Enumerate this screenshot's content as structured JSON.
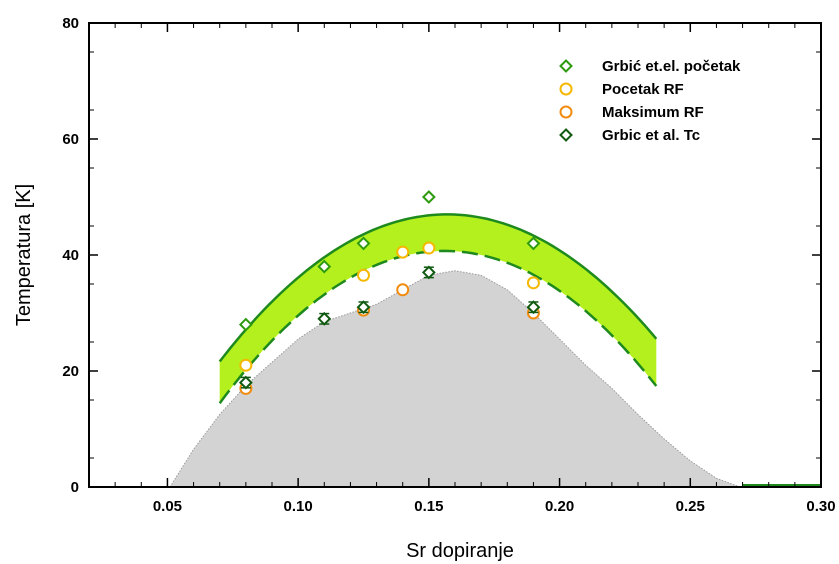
{
  "chart_data": {
    "type": "scatter",
    "xlabel": "Sr dopiranje",
    "ylabel": "Temperatura [K]",
    "xlim": [
      0.02,
      0.3
    ],
    "ylim": [
      0,
      80
    ],
    "xticks": [
      0.05,
      0.1,
      0.15,
      0.2,
      0.25,
      0.3
    ],
    "xtick_labels": [
      "0.05",
      "0.10",
      "0.15",
      "0.20",
      "0.25",
      "0.30"
    ],
    "yticks": [
      0,
      20,
      40,
      60,
      80
    ],
    "ytick_labels": [
      "0",
      "20",
      "40",
      "60",
      "80"
    ],
    "grid": false,
    "legend_position": "top-right",
    "series": [
      {
        "name": "Grbić et.el. početak",
        "marker": "diamond-open",
        "color": "#2e9b0f",
        "x": [
          0.08,
          0.11,
          0.125,
          0.15,
          0.19
        ],
        "y": [
          28,
          38,
          42,
          50,
          42
        ]
      },
      {
        "name": "Pocetak RF",
        "marker": "circle-open",
        "color": "#f5b800",
        "x": [
          0.08,
          0.125,
          0.14,
          0.15,
          0.19
        ],
        "y": [
          21,
          36.5,
          40.5,
          41.2,
          35.2
        ]
      },
      {
        "name": "Maksimum RF",
        "marker": "circle-open",
        "color": "#f28c0f",
        "x": [
          0.08,
          0.125,
          0.14,
          0.19
        ],
        "y": [
          17,
          30.5,
          34,
          30
        ]
      },
      {
        "name": "Grbic et al. Tc",
        "marker": "diamond-open",
        "color": "#0f5a10",
        "x": [
          0.08,
          0.11,
          0.125,
          0.15,
          0.19
        ],
        "y": [
          18,
          29,
          31,
          37,
          31
        ],
        "yerr": [
          0.9,
          0.9,
          0.9,
          0.9,
          0.9
        ]
      }
    ],
    "upper_curve": {
      "x0": 0.07,
      "x1": 0.237,
      "vertex_x": 0.157,
      "vertex_y": 47,
      "curvature": 3350,
      "color": "#1e8a1e"
    },
    "lower_curve": {
      "x0": 0.07,
      "x1": 0.237,
      "vertex_x": 0.156,
      "vertex_y": 40.7,
      "curvature": 3550,
      "color": "#1e8a1e"
    },
    "band_color": "#b4f01e",
    "shaded_region": {
      "color": "#d3d3d3",
      "x": [
        0.051,
        0.06,
        0.07,
        0.08,
        0.09,
        0.1,
        0.11,
        0.12,
        0.13,
        0.14,
        0.15,
        0.16,
        0.17,
        0.18,
        0.19,
        0.2,
        0.21,
        0.22,
        0.23,
        0.24,
        0.25,
        0.26,
        0.269
      ],
      "y": [
        0,
        6.5,
        12.5,
        17.5,
        21.5,
        25.5,
        28.5,
        30,
        31.5,
        34,
        36.5,
        37.3,
        36.5,
        34,
        30,
        25.5,
        21,
        17,
        12.5,
        8.3,
        4.5,
        1.5,
        0
      ]
    },
    "baseline_segment": {
      "x": [
        0.27,
        0.3
      ],
      "y": [
        0.3,
        0.3
      ],
      "color": "#1e8a1e"
    }
  }
}
